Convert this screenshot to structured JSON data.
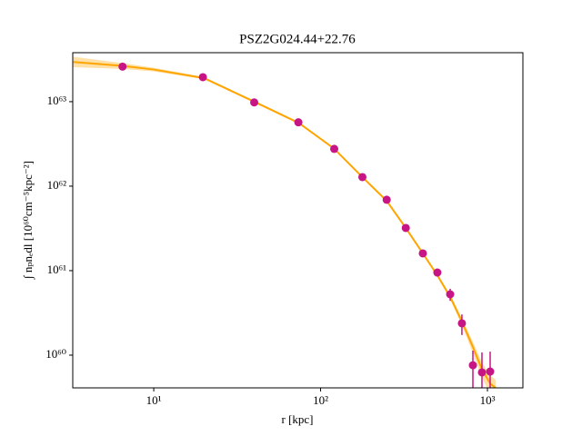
{
  "chart_data": {
    "type": "scatter",
    "title": "PSZ2G024.44+22.76",
    "xlabel": "r [kpc]",
    "ylabel": "∫ nₚnₑdl [10⁶⁰cm⁻⁵kpc⁻²]",
    "xscale": "log",
    "yscale": "log",
    "xlim": [
      3.27,
      1631
    ],
    "ylim": [
      4.1e+59,
      3.8e+63
    ],
    "xticks": [
      {
        "value": 10,
        "label": "10¹"
      },
      {
        "value": 100,
        "label": "10²"
      },
      {
        "value": 1000,
        "label": "10³"
      }
    ],
    "yticks": [
      {
        "value": 1e+60,
        "label": "10⁶⁰"
      },
      {
        "value": 1e+61,
        "label": "10⁶¹"
      },
      {
        "value": 1e+62,
        "label": "10⁶²"
      },
      {
        "value": 1e+63,
        "label": "10⁶³"
      }
    ],
    "series": [
      {
        "type": "band",
        "color": "#ffa500",
        "x": [
          3.3,
          6.5,
          10,
          20,
          40,
          74,
          120,
          178,
          249,
          324,
          410,
          501,
          598,
          703,
          818,
          927,
          1038,
          1120
        ],
        "lower": [
          2.56e+63,
          2.44e+63,
          2.28e+63,
          1.84e+63,
          9.7e+62,
          5.43e+62,
          2.72e+62,
          1.24e+62,
          6.5e+61,
          3.1e+61,
          1.55e+61,
          8.45e+60,
          4.6e+60,
          2.25e+60,
          1.06e+60,
          5.4e+59,
          3.45e+59,
          3.1e+59
        ],
        "upper": [
          3.4e+63,
          2.86e+63,
          2.52e+63,
          1.96e+63,
          1.03e+63,
          5.77e+62,
          2.88e+62,
          1.32e+62,
          6.9e+61,
          3.3e+61,
          1.65e+61,
          9.15e+60,
          5.2e+60,
          2.75e+60,
          1.44e+60,
          8.2e+59,
          5.75e+59,
          5.1e+59
        ]
      },
      {
        "type": "line",
        "color": "#ffa500",
        "x": [
          3.3,
          6.5,
          10,
          20,
          40,
          74,
          120,
          178,
          249,
          324,
          410,
          501,
          598,
          703,
          818,
          927,
          1038,
          1120
        ],
        "values": [
          2.95e+63,
          2.65e+63,
          2.4e+63,
          1.9e+63,
          1e+63,
          5.6e+62,
          2.8e+62,
          1.28e+62,
          6.7e+61,
          3.2e+61,
          1.6e+61,
          8.8e+60,
          4.9e+60,
          2.5e+60,
          1.25e+60,
          6.8e+59,
          4.6e+59,
          4.1e+59
        ]
      },
      {
        "type": "errorbar",
        "color": "#c71585",
        "x": [
          6.5,
          19.7,
          40,
          73.6,
          120.7,
          178,
          249,
          324,
          410,
          501,
          598,
          703,
          818,
          927,
          1038
        ],
        "values": [
          2.6e+63,
          1.95e+63,
          9.8e+62,
          5.7e+62,
          2.76e+62,
          1.28e+62,
          6.9e+61,
          3.2e+61,
          1.6e+61,
          9.5e+60,
          5.25e+60,
          2.38e+60,
          7.6e+59,
          6.25e+59,
          6.4e+59
        ],
        "yerr": [
          5e+61,
          4e+61,
          2e+61,
          1.2e+61,
          6e+60,
          3e+60,
          1.5e+60,
          8e+59,
          5e+59,
          4e+59,
          8.5e+59,
          6.5e+59,
          3.7e+59,
          4.5e+59,
          4.6e+59
        ]
      }
    ]
  }
}
